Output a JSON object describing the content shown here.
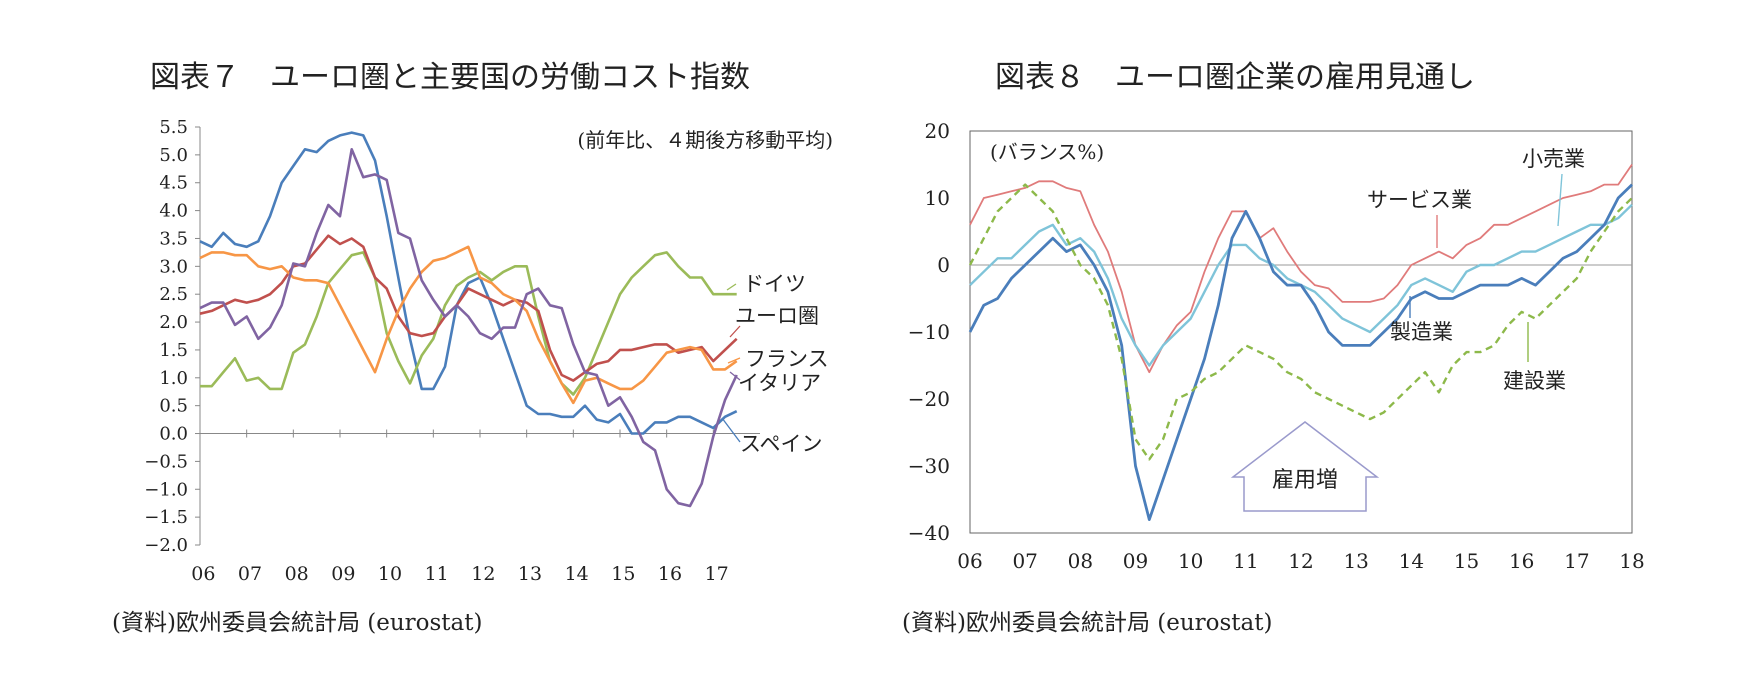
{
  "charts": [
    {
      "title": "図表７　ユーロ圏と主要国の労働コスト指数",
      "source": "(資料)欧州委員会統計局 (eurostat)"
    },
    {
      "title": "図表８　ユーロ圏企業の雇用見通し",
      "source": "(資料)欧州委員会統計局 (eurostat)"
    }
  ],
  "chart_data": [
    {
      "type": "line",
      "title": "図表７　ユーロ圏と主要国の労働コスト指数",
      "subtitle": "(前年比、４期後方移動平均)",
      "xlabel": "",
      "ylabel": "",
      "xlim": [
        2006,
        2018
      ],
      "ylim": [
        -2.0,
        5.5
      ],
      "x_tick_labels": [
        "06",
        "07",
        "08",
        "09",
        "10",
        "11",
        "12",
        "13",
        "14",
        "15",
        "16",
        "17"
      ],
      "y_ticks": [
        5.5,
        5.0,
        4.5,
        4.0,
        3.5,
        3.0,
        2.5,
        2.0,
        1.5,
        1.0,
        0.5,
        0.0,
        -0.5,
        -1.0,
        -1.5,
        -2.0
      ],
      "y_tick_labels": [
        "5.5",
        "5.0",
        "4.5",
        "4.0",
        "3.5",
        "3.0",
        "2.5",
        "2.0",
        "1.5",
        "1.0",
        "0.5",
        "0.0",
        "−0.5",
        "−1.0",
        "−1.5",
        "−2.0"
      ],
      "grid": false,
      "series": [
        {
          "name": "スペイン",
          "color": "#4A7EBB",
          "x": [
            2006.0,
            2006.25,
            2006.5,
            2006.75,
            2007.0,
            2007.25,
            2007.5,
            2007.75,
            2008.0,
            2008.25,
            2008.5,
            2008.75,
            2009.0,
            2009.25,
            2009.5,
            2009.75,
            2010.0,
            2010.25,
            2010.5,
            2010.75,
            2011.0,
            2011.25,
            2011.5,
            2011.75,
            2012.0,
            2012.25,
            2012.5,
            2012.75,
            2013.0,
            2013.25,
            2013.5,
            2013.75,
            2014.0,
            2014.25,
            2014.5,
            2014.75,
            2015.0,
            2015.25,
            2015.5,
            2015.75,
            2016.0,
            2016.25,
            2016.5,
            2016.75,
            2017.0,
            2017.25,
            2017.5
          ],
          "y": [
            3.45,
            3.35,
            3.6,
            3.4,
            3.35,
            3.45,
            3.9,
            4.5,
            4.8,
            5.1,
            5.05,
            5.25,
            5.35,
            5.4,
            5.35,
            4.9,
            3.9,
            2.8,
            1.7,
            0.8,
            0.8,
            1.2,
            2.3,
            2.7,
            2.8,
            2.3,
            1.7,
            1.1,
            0.5,
            0.35,
            0.35,
            0.3,
            0.3,
            0.5,
            0.25,
            0.2,
            0.35,
            0.0,
            0.0,
            0.2,
            0.2,
            0.3,
            0.3,
            0.2,
            0.1,
            0.3,
            0.4
          ]
        },
        {
          "name": "ドイツ",
          "color": "#9BBB59",
          "x": [
            2006.0,
            2006.25,
            2006.5,
            2006.75,
            2007.0,
            2007.25,
            2007.5,
            2007.75,
            2008.0,
            2008.25,
            2008.5,
            2008.75,
            2009.0,
            2009.25,
            2009.5,
            2009.75,
            2010.0,
            2010.25,
            2010.5,
            2010.75,
            2011.0,
            2011.25,
            2011.5,
            2011.75,
            2012.0,
            2012.25,
            2012.5,
            2012.75,
            2013.0,
            2013.25,
            2013.5,
            2013.75,
            2014.0,
            2014.25,
            2014.5,
            2014.75,
            2015.0,
            2015.25,
            2015.5,
            2015.75,
            2016.0,
            2016.25,
            2016.5,
            2016.75,
            2017.0,
            2017.25,
            2017.5
          ],
          "y": [
            0.85,
            0.85,
            1.1,
            1.35,
            0.95,
            1.0,
            0.8,
            0.8,
            1.45,
            1.6,
            2.1,
            2.7,
            2.95,
            3.2,
            3.25,
            2.8,
            1.8,
            1.3,
            0.9,
            1.4,
            1.7,
            2.3,
            2.65,
            2.8,
            2.9,
            2.75,
            2.9,
            3.0,
            3.0,
            2.1,
            1.3,
            0.9,
            0.7,
            1.0,
            1.5,
            2.0,
            2.5,
            2.8,
            3.0,
            3.2,
            3.25,
            3.0,
            2.8,
            2.8,
            2.5,
            2.5,
            2.5
          ]
        },
        {
          "name": "ユーロ圏",
          "color": "#C0504D",
          "x": [
            2006.0,
            2006.25,
            2006.5,
            2006.75,
            2007.0,
            2007.25,
            2007.5,
            2007.75,
            2008.0,
            2008.25,
            2008.5,
            2008.75,
            2009.0,
            2009.25,
            2009.5,
            2009.75,
            2010.0,
            2010.25,
            2010.5,
            2010.75,
            2011.0,
            2011.25,
            2011.5,
            2011.75,
            2012.0,
            2012.25,
            2012.5,
            2012.75,
            2013.0,
            2013.25,
            2013.5,
            2013.75,
            2014.0,
            2014.25,
            2014.5,
            2014.75,
            2015.0,
            2015.25,
            2015.5,
            2015.75,
            2016.0,
            2016.25,
            2016.5,
            2016.75,
            2017.0,
            2017.25,
            2017.5
          ],
          "y": [
            2.15,
            2.2,
            2.3,
            2.4,
            2.35,
            2.4,
            2.5,
            2.7,
            3.0,
            3.05,
            3.3,
            3.55,
            3.4,
            3.5,
            3.35,
            2.8,
            2.6,
            2.1,
            1.8,
            1.75,
            1.8,
            2.1,
            2.3,
            2.6,
            2.5,
            2.4,
            2.3,
            2.4,
            2.35,
            2.2,
            1.5,
            1.05,
            0.95,
            1.1,
            1.25,
            1.3,
            1.5,
            1.5,
            1.55,
            1.6,
            1.6,
            1.45,
            1.5,
            1.55,
            1.3,
            1.5,
            1.7
          ]
        },
        {
          "name": "フランス",
          "color": "#F79646",
          "x": [
            2006.0,
            2006.25,
            2006.5,
            2006.75,
            2007.0,
            2007.25,
            2007.5,
            2007.75,
            2008.0,
            2008.25,
            2008.5,
            2008.75,
            2009.0,
            2009.25,
            2009.5,
            2009.75,
            2010.0,
            2010.25,
            2010.5,
            2010.75,
            2011.0,
            2011.25,
            2011.5,
            2011.75,
            2012.0,
            2012.25,
            2012.5,
            2012.75,
            2013.0,
            2013.25,
            2013.5,
            2013.75,
            2014.0,
            2014.25,
            2014.5,
            2014.75,
            2015.0,
            2015.25,
            2015.5,
            2015.75,
            2016.0,
            2016.25,
            2016.5,
            2016.75,
            2017.0,
            2017.25,
            2017.5
          ],
          "y": [
            3.15,
            3.25,
            3.25,
            3.2,
            3.2,
            3.0,
            2.95,
            3.0,
            2.8,
            2.75,
            2.75,
            2.7,
            2.3,
            1.9,
            1.5,
            1.1,
            1.7,
            2.2,
            2.6,
            2.9,
            3.1,
            3.15,
            3.25,
            3.35,
            2.8,
            2.7,
            2.5,
            2.4,
            2.2,
            1.7,
            1.3,
            0.9,
            0.55,
            0.95,
            1.0,
            0.9,
            0.8,
            0.8,
            0.95,
            1.2,
            1.45,
            1.5,
            1.55,
            1.5,
            1.15,
            1.15,
            1.3
          ]
        },
        {
          "name": "イタリア",
          "color": "#8064A2",
          "x": [
            2006.0,
            2006.25,
            2006.5,
            2006.75,
            2007.0,
            2007.25,
            2007.5,
            2007.75,
            2008.0,
            2008.25,
            2008.5,
            2008.75,
            2009.0,
            2009.25,
            2009.5,
            2009.75,
            2010.0,
            2010.25,
            2010.5,
            2010.75,
            2011.0,
            2011.25,
            2011.5,
            2011.75,
            2012.0,
            2012.25,
            2012.5,
            2012.75,
            2013.0,
            2013.25,
            2013.5,
            2013.75,
            2014.0,
            2014.25,
            2014.5,
            2014.75,
            2015.0,
            2015.25,
            2015.5,
            2015.75,
            2016.0,
            2016.25,
            2016.5,
            2016.75,
            2017.0,
            2017.25,
            2017.5
          ],
          "y": [
            2.25,
            2.35,
            2.35,
            1.95,
            2.1,
            1.7,
            1.9,
            2.3,
            3.05,
            3.0,
            3.6,
            4.1,
            3.9,
            5.1,
            4.6,
            4.65,
            4.55,
            3.6,
            3.5,
            2.75,
            2.4,
            2.1,
            2.3,
            2.1,
            1.8,
            1.7,
            1.9,
            1.9,
            2.5,
            2.6,
            2.3,
            2.25,
            1.6,
            1.1,
            1.05,
            0.5,
            0.65,
            0.3,
            -0.15,
            -0.3,
            -1.0,
            -1.25,
            -1.3,
            -0.9,
            -0.05,
            0.6,
            1.05
          ]
        }
      ]
    },
    {
      "type": "line",
      "title": "図表８　ユーロ圏企業の雇用見通し",
      "subtitle": "(バランス%)",
      "xlabel": "",
      "ylabel": "",
      "xlim": [
        2006,
        2018
      ],
      "ylim": [
        -40,
        20
      ],
      "x_tick_labels": [
        "06",
        "07",
        "08",
        "09",
        "10",
        "11",
        "12",
        "13",
        "14",
        "15",
        "16",
        "17",
        "18"
      ],
      "y_ticks": [
        20,
        10,
        0,
        -10,
        -20,
        -30,
        -40
      ],
      "y_tick_labels": [
        "20",
        "10",
        "0",
        "−10",
        "−20",
        "−30",
        "−40"
      ],
      "grid": false,
      "annotation": "雇用増",
      "series": [
        {
          "name": "サービス業",
          "color": "#E07B7B",
          "x": [
            2006.0,
            2006.25,
            2006.5,
            2006.75,
            2007.0,
            2007.25,
            2007.5,
            2007.75,
            2008.0,
            2008.25,
            2008.5,
            2008.75,
            2009.0,
            2009.25,
            2009.5,
            2009.75,
            2010.0,
            2010.25,
            2010.5,
            2010.75,
            2011.0,
            2011.25,
            2011.5,
            2011.75,
            2012.0,
            2012.25,
            2012.5,
            2012.75,
            2013.0,
            2013.25,
            2013.5,
            2013.75,
            2014.0,
            2014.25,
            2014.5,
            2014.75,
            2015.0,
            2015.25,
            2015.5,
            2015.75,
            2016.0,
            2016.25,
            2016.5,
            2016.75,
            2017.0,
            2017.25,
            2017.5,
            2017.75,
            2018.0
          ],
          "y": [
            6,
            10,
            10.5,
            11,
            11.5,
            12.5,
            12.5,
            11.5,
            11,
            6,
            2,
            -4,
            -12,
            -16,
            -12,
            -9,
            -7,
            -1,
            4,
            8,
            8,
            4,
            5.5,
            2,
            -1,
            -3,
            -3.5,
            -5.5,
            -5.5,
            -5.5,
            -5,
            -3,
            0,
            1,
            2,
            1,
            3,
            4,
            6,
            6,
            7,
            8,
            9,
            10,
            10.5,
            11,
            12,
            12,
            15
          ]
        },
        {
          "name": "小売業",
          "color": "#7FC4D9",
          "x": [
            2006.0,
            2006.25,
            2006.5,
            2006.75,
            2007.0,
            2007.25,
            2007.5,
            2007.75,
            2008.0,
            2008.25,
            2008.5,
            2008.75,
            2009.0,
            2009.25,
            2009.5,
            2009.75,
            2010.0,
            2010.25,
            2010.5,
            2010.75,
            2011.0,
            2011.25,
            2011.5,
            2011.75,
            2012.0,
            2012.25,
            2012.5,
            2012.75,
            2013.0,
            2013.25,
            2013.5,
            2013.75,
            2014.0,
            2014.25,
            2014.5,
            2014.75,
            2015.0,
            2015.25,
            2015.5,
            2015.75,
            2016.0,
            2016.25,
            2016.5,
            2016.75,
            2017.0,
            2017.25,
            2017.5,
            2017.75,
            2018.0
          ],
          "y": [
            -3,
            -1,
            1,
            1,
            3,
            5,
            6,
            3,
            4,
            2,
            -2,
            -8,
            -12,
            -15,
            -12,
            -10,
            -8,
            -4,
            0,
            3,
            3,
            1,
            0,
            -2,
            -3,
            -4,
            -6,
            -8,
            -9,
            -10,
            -8,
            -6,
            -3,
            -2,
            -3,
            -4,
            -1,
            0,
            0,
            1,
            2,
            2,
            3,
            4,
            5,
            6,
            6,
            7,
            9
          ]
        },
        {
          "name": "製造業",
          "color": "#4A7EBB",
          "x": [
            2006.0,
            2006.25,
            2006.5,
            2006.75,
            2007.0,
            2007.25,
            2007.5,
            2007.75,
            2008.0,
            2008.25,
            2008.5,
            2008.75,
            2009.0,
            2009.25,
            2009.5,
            2009.75,
            2010.0,
            2010.25,
            2010.5,
            2010.75,
            2011.0,
            2011.25,
            2011.5,
            2011.75,
            2012.0,
            2012.25,
            2012.5,
            2012.75,
            2013.0,
            2013.25,
            2013.5,
            2013.75,
            2014.0,
            2014.25,
            2014.5,
            2014.75,
            2015.0,
            2015.25,
            2015.5,
            2015.75,
            2016.0,
            2016.25,
            2016.5,
            2016.75,
            2017.0,
            2017.25,
            2017.5,
            2017.75,
            2018.0
          ],
          "y": [
            -10,
            -6,
            -5,
            -2,
            0,
            2,
            4,
            2,
            3,
            0,
            -4,
            -12,
            -30,
            -38,
            -32,
            -26,
            -20,
            -14,
            -6,
            4,
            8,
            4,
            -1,
            -3,
            -3,
            -6,
            -10,
            -12,
            -12,
            -12,
            -10,
            -8,
            -5,
            -4,
            -5,
            -5,
            -4,
            -3,
            -3,
            -3,
            -2,
            -3,
            -1,
            1,
            2,
            4,
            6,
            10,
            12
          ]
        },
        {
          "name": "建設業",
          "color": "#8DB94A",
          "x": [
            2006.0,
            2006.25,
            2006.5,
            2006.75,
            2007.0,
            2007.25,
            2007.5,
            2007.75,
            2008.0,
            2008.25,
            2008.5,
            2008.75,
            2009.0,
            2009.25,
            2009.5,
            2009.75,
            2010.0,
            2010.25,
            2010.5,
            2010.75,
            2011.0,
            2011.25,
            2011.5,
            2011.75,
            2012.0,
            2012.25,
            2012.5,
            2012.75,
            2013.0,
            2013.25,
            2013.5,
            2013.75,
            2014.0,
            2014.25,
            2014.5,
            2014.75,
            2015.0,
            2015.25,
            2015.5,
            2015.75,
            2016.0,
            2016.25,
            2016.5,
            2016.75,
            2017.0,
            2017.25,
            2017.5,
            2017.75,
            2018.0
          ],
          "y": [
            0,
            4,
            8,
            10,
            12,
            10,
            8,
            4,
            0,
            -2,
            -6,
            -14,
            -26,
            -29,
            -26,
            -20,
            -19,
            -17,
            -16,
            -14,
            -12,
            -13,
            -14,
            -16,
            -17,
            -19,
            -20,
            -21,
            -22,
            -23,
            -22,
            -20,
            -18,
            -16,
            -19,
            -15,
            -13,
            -13,
            -12,
            -9,
            -7,
            -8,
            -6,
            -4,
            -2,
            2,
            5,
            8,
            10
          ]
        }
      ]
    }
  ]
}
